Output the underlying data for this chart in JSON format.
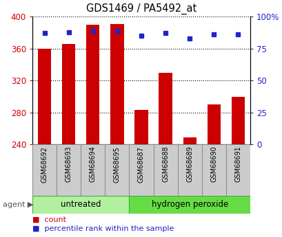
{
  "title": "GDS1469 / PA5492_at",
  "categories": [
    "GSM68692",
    "GSM68693",
    "GSM68694",
    "GSM68695",
    "GSM68687",
    "GSM68688",
    "GSM68689",
    "GSM68690",
    "GSM68691"
  ],
  "bar_values": [
    360,
    366,
    390,
    391,
    283,
    330,
    249,
    290,
    300
  ],
  "bar_bottom": 240,
  "percentile_values": [
    87,
    88,
    89,
    89,
    85,
    87,
    83,
    86,
    86
  ],
  "bar_color": "#cc0000",
  "dot_color": "#2222cc",
  "ylim_left": [
    240,
    400
  ],
  "ylim_right": [
    0,
    100
  ],
  "yticks_left": [
    240,
    280,
    320,
    360,
    400
  ],
  "yticks_right": [
    0,
    25,
    50,
    75,
    100
  ],
  "ytick_labels_right": [
    "0",
    "25",
    "50",
    "75",
    "100%"
  ],
  "agent_groups": [
    {
      "label": "untreated",
      "n": 4,
      "color": "#b2f0a0"
    },
    {
      "label": "hydrogen peroxide",
      "n": 5,
      "color": "#66dd44"
    }
  ],
  "legend_count_label": "count",
  "legend_pct_label": "percentile rank within the sample",
  "bar_width": 0.55,
  "tick_label_color_left": "#cc0000",
  "tick_label_color_right": "#2222cc",
  "xbox_color": "#cccccc",
  "xbox_edge": "#888888",
  "group1_color": "#b2f0a0",
  "group2_color": "#66dd44",
  "group_edge": "#44aa44"
}
